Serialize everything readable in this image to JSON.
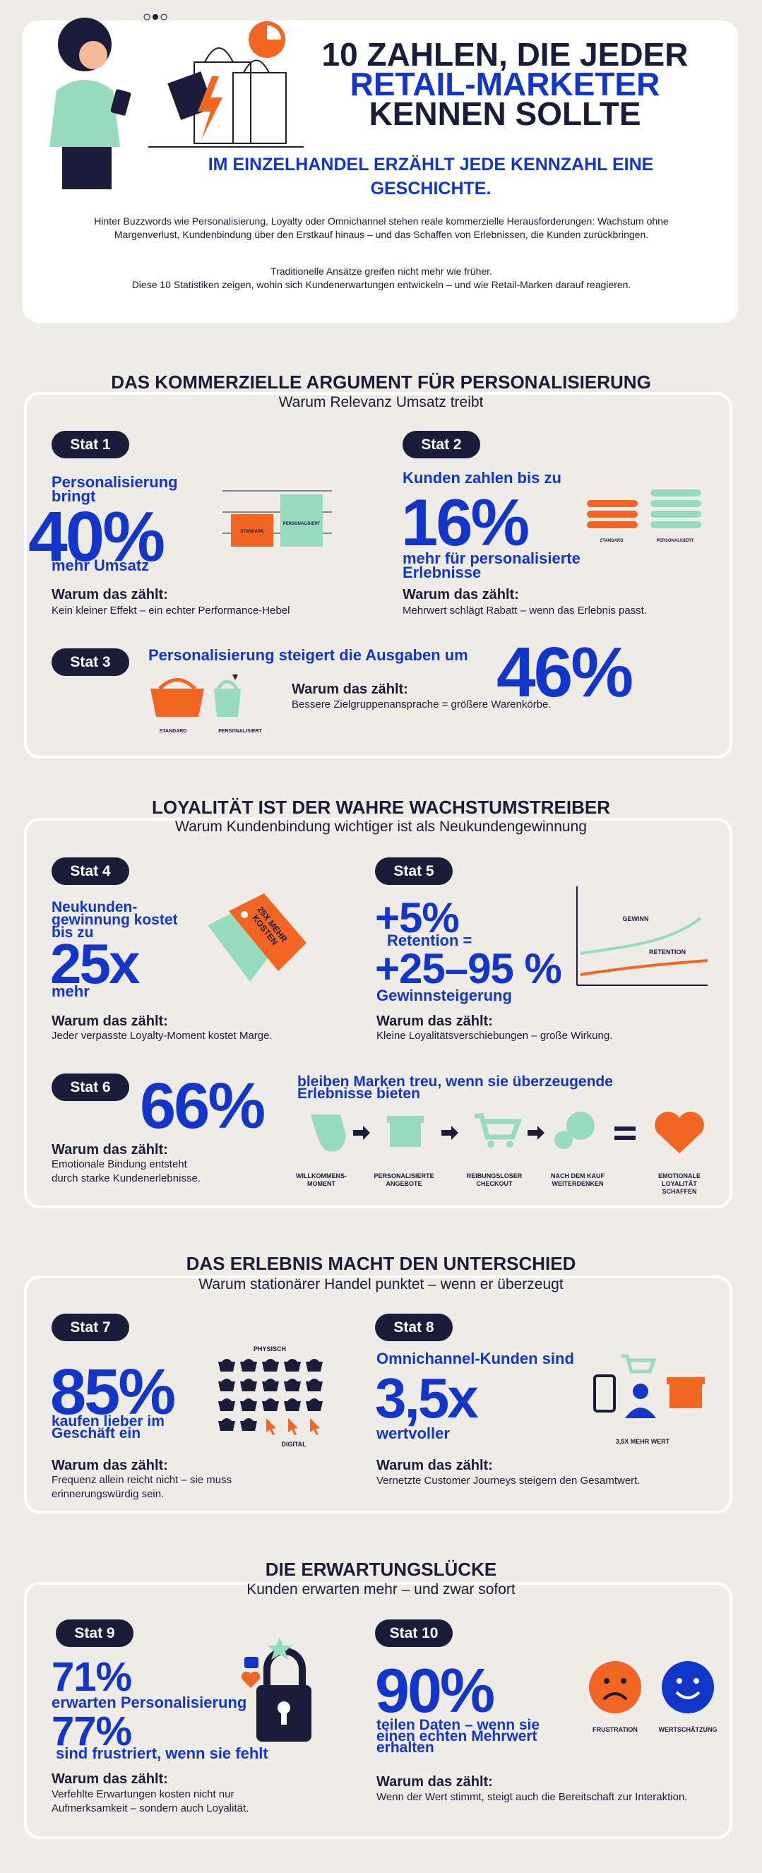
{
  "header": {
    "title_lines": [
      "10 ZAHLEN, DIE JEDER",
      "RETAIL-MARKETER",
      "KENNEN SOLLTE"
    ],
    "subtitle": "IM EINZELHANDEL ERZÄHLT JEDE KENNZAHL EINE GESCHICHTE.",
    "intro": [
      "Hinter Buzzwords wie Personalisierung, Loyalty oder Omnichannel stehen reale kommerzielle Herausforderungen: Wachstum ohne Margenverlust, Kundenbindung über den Erstkauf hinaus – und das Schaffen von Erlebnissen, die Kunden zurückbringen."
    ],
    "intro2": [
      "Traditionelle Ansätze greifen nicht mehr wie früher.",
      "Diese 10 Statistiken zeigen, wohin sich Kundenerwartungen entwickeln – und wie Retail-Marken darauf reagieren."
    ]
  },
  "sections": [
    {
      "title": "DAS KOMMERZIELLE ARGUMENT FÜR PERSONALISIERUNG",
      "subtitle": "Warum Relevanz Umsatz treibt",
      "stats": [
        {
          "label": "Stat 1",
          "lead": "Personalisierung bringt",
          "value": "40%",
          "tail": "mehr Umsatz",
          "why_title": "Warum das zählt:",
          "why_text": "Kein kleiner Effekt – ein echter Performance-Hebel",
          "graphic_labels": [
            "STANDARD",
            "PERSONALISIERT"
          ]
        },
        {
          "label": "Stat 2",
          "lead": "Kunden zahlen bis zu",
          "value": "16%",
          "tail": "mehr für personalisierte Erlebnisse",
          "why_title": "Warum das zählt:",
          "why_text": "Mehrwert schlägt Rabatt – wenn das Erlebnis passt.",
          "graphic_labels": [
            "STANDARD",
            "PERSONALISIERT"
          ]
        },
        {
          "label": "Stat 3",
          "lead": "Personalisierung steigert die Ausgaben um",
          "value": "46%",
          "why_title": "Warum das zählt:",
          "why_text": "Bessere Zielgruppenansprache = größere Warenkörbe.",
          "graphic_labels": [
            "STANDARD",
            "PERSONALISIERT"
          ]
        }
      ]
    },
    {
      "title": "LOYALITÄT IST DER WAHRE WACHSTUMSTREIBER",
      "subtitle": "Warum Kundenbindung wichtiger ist als Neukundengewinnung",
      "stats": [
        {
          "label": "Stat 4",
          "lead": "Neukunden-gewinnung kostet bis zu",
          "value": "25x",
          "tail": "mehr",
          "why_title": "Warum das zählt:",
          "why_text": "Jeder verpasste Loyalty-Moment kostet Marge.",
          "graphic_labels": [
            "25X MEHR KOSTEN"
          ]
        },
        {
          "label": "Stat 5",
          "lead": "+5%",
          "middle": "Retention =",
          "value": "+25–95 %",
          "tail": "Gewinnsteigerung",
          "why_title": "Warum das zählt:",
          "why_text": "Kleine Loyalitätsverschiebungen – große Wirkung.",
          "graphic_labels": [
            "GEWINN",
            "RETENTION"
          ]
        },
        {
          "label": "Stat 6",
          "value": "66%",
          "tail": "bleiben Marken treu, wenn sie überzeugende Erlebnisse bieten",
          "why_title": "Warum das zählt:",
          "why_text": [
            "Emotionale Bindung entsteht",
            "durch starke Kundenerlebnisse."
          ],
          "graphic_labels": [
            "WILLKOMMENS-MOMENT",
            "PERSONALISIERTE ANGEBOTE",
            "REIBUNGSLOSER CHECKOUT",
            "NACH DEM KAUF WEITERDENKEN",
            "EMOTIONALE LOYALITÄT SCHAFFEN"
          ]
        }
      ]
    },
    {
      "title": "DAS ERLEBNIS MACHT DEN UNTERSCHIED",
      "subtitle": "Warum stationärer Handel punktet – wenn er überzeugt",
      "stats": [
        {
          "label": "Stat 7",
          "value": "85%",
          "tail": "kaufen lieber im Geschäft ein",
          "why_title": "Warum das zählt:",
          "why_text": "Frequenz allein reicht nicht – sie muss erinnerungswürdig sein.",
          "graphic_labels": [
            "PHYSISCH",
            "DIGITAL"
          ]
        },
        {
          "label": "Stat 8",
          "lead": "Omnichannel-Kunden sind",
          "value": "3,5x",
          "tail": "wertvoller",
          "why_title": "Warum das zählt:",
          "why_text": "Vernetzte Customer Journeys steigern den Gesamtwert.",
          "graphic_labels": [
            "3,5X MEHR WERT"
          ]
        }
      ]
    },
    {
      "title": "DIE ERWARTUNGSLÜCKE",
      "subtitle": "Kunden erwarten mehr – und zwar sofort",
      "stats": [
        {
          "label": "Stat 9",
          "value": "71%",
          "tail": "erwarten Personalisierung",
          "value2": "77%",
          "tail2": "sind frustriert, wenn sie fehlt",
          "why_title": "Warum das zählt:",
          "why_text": "Verfehlte Erwartungen kosten nicht nur Aufmerksamkeit – sondern auch Loyalität."
        },
        {
          "label": "Stat 10",
          "value": "90%",
          "tail": "teilen Daten – wenn sie einen echten Mehrwert erhalten",
          "why_title": "Warum das zählt:",
          "why_text": "Wenn der Wert stimmt, steigt auch die Bereitschaft zur Interaktion.",
          "graphic_labels": [
            "FRUSTRATION",
            "WERTSCHÄTZUNG"
          ]
        }
      ]
    }
  ]
}
